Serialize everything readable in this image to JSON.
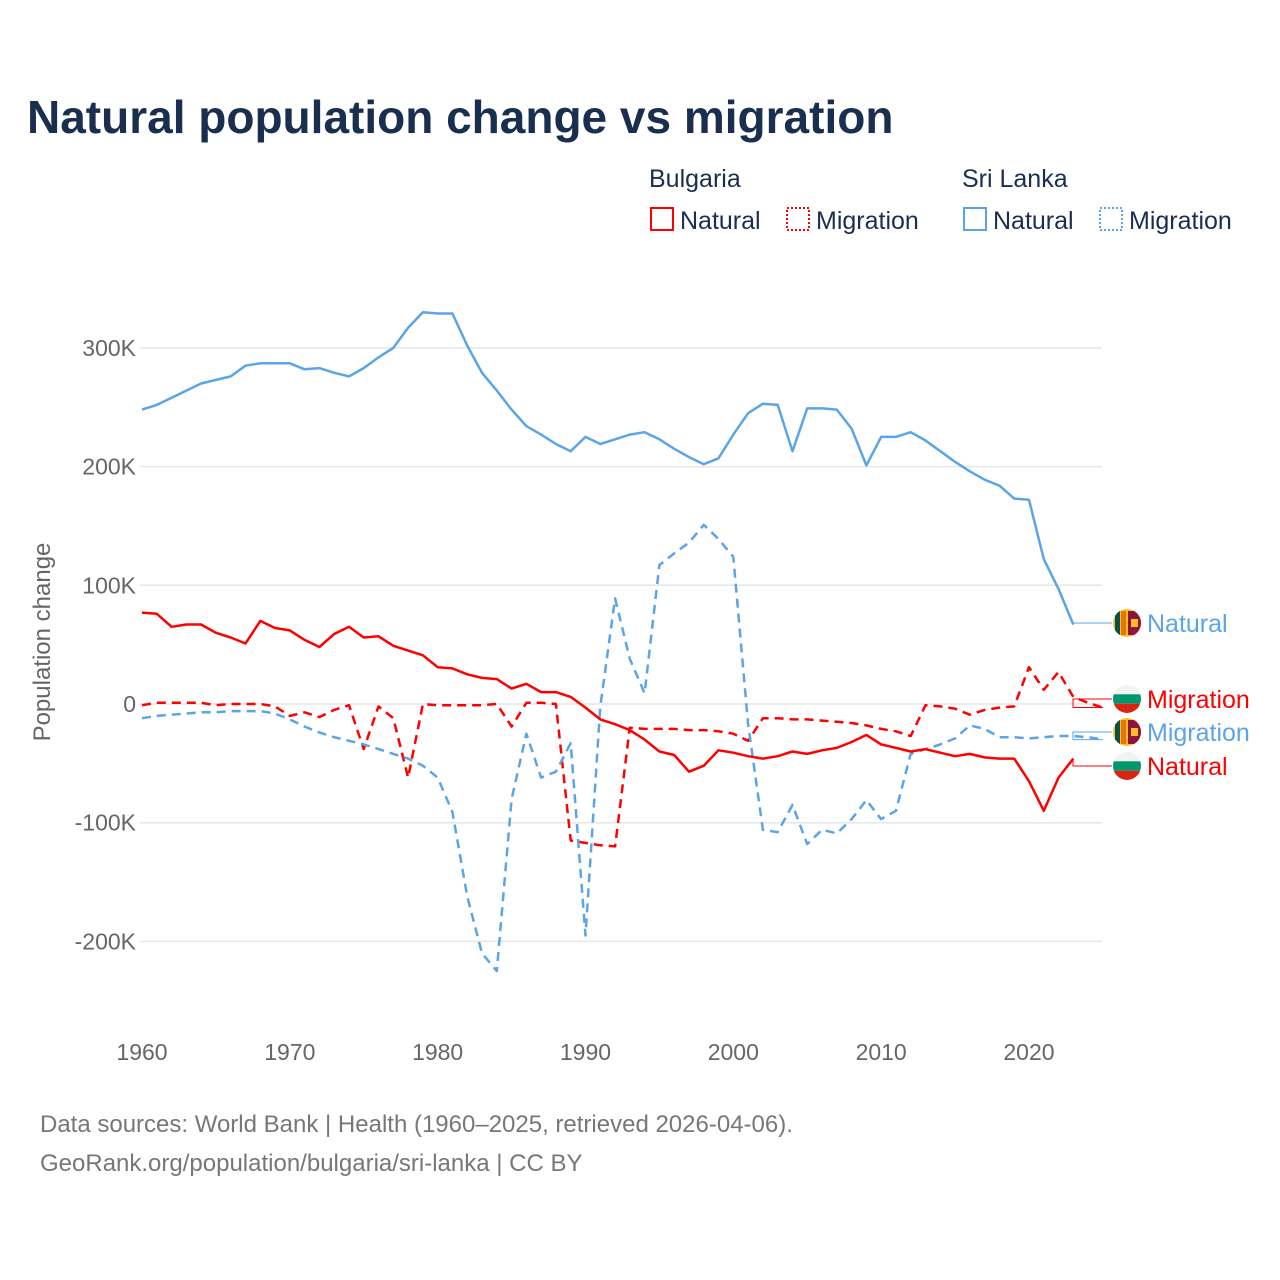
{
  "colors": {
    "bulgaria": "#ff0000",
    "sri_lanka": "#5ba4e8",
    "title": "#1a2e4f",
    "grid": "#e6e6e6"
  },
  "chart_data": {
    "type": "line",
    "title": "Natural population change vs migration",
    "xlabel": "",
    "ylabel": "Population change",
    "xlim": [
      1960,
      2025
    ],
    "ylim": [
      -250000,
      350000
    ],
    "grid": true,
    "x_ticks": [
      1960,
      1970,
      1980,
      1990,
      2000,
      2010,
      2020
    ],
    "x_tick_labels": [
      "1960",
      "1970",
      "1980",
      "1990",
      "2000",
      "2010",
      "2020"
    ],
    "y_ticks": [
      300000,
      200000,
      100000,
      0,
      -100000,
      -200000
    ],
    "y_tick_labels": [
      "300K",
      "200K",
      "100K",
      "0",
      "-100K",
      "-200K"
    ],
    "legend": {
      "placement": "top-right",
      "groups": [
        {
          "title": "Bulgaria",
          "items": [
            "Natural",
            "Migration"
          ]
        },
        {
          "title": "Sri Lanka",
          "items": [
            "Natural",
            "Migration"
          ]
        }
      ]
    },
    "series": [
      {
        "name": "Sri Lanka Natural",
        "country": "sri_lanka",
        "kind": "Natural",
        "dashed": false,
        "start_year": 1960,
        "end_label": "Natural",
        "values": [
          248000,
          252000,
          258000,
          264000,
          270000,
          273000,
          276000,
          285000,
          287000,
          287000,
          287000,
          282000,
          283000,
          279000,
          276000,
          283000,
          292000,
          300000,
          317000,
          330000,
          329000,
          329000,
          302000,
          279000,
          264000,
          248000,
          234000,
          227000,
          219000,
          213000,
          225000,
          219000,
          223000,
          227000,
          229000,
          223000,
          215000,
          208000,
          202000,
          207000,
          227000,
          245000,
          253000,
          252000,
          213000,
          249000,
          249000,
          248000,
          232000,
          201000,
          225000,
          225000,
          229000,
          222000,
          213000,
          204000,
          196000,
          189000,
          184000,
          173000,
          172000,
          122000,
          97000,
          67000
        ]
      },
      {
        "name": "Bulgaria Migration",
        "country": "bulgaria",
        "kind": "Migration",
        "dashed": true,
        "start_year": 1960,
        "end_label": "Migration",
        "values": [
          -1000,
          1000,
          1000,
          1000,
          1000,
          -1000,
          0,
          0,
          0,
          -2000,
          -10000,
          -7000,
          -11000,
          -5000,
          -1000,
          -38000,
          -2000,
          -12000,
          -62000,
          0,
          -1000,
          -1000,
          -1000,
          -1000,
          0,
          -19000,
          1000,
          1000,
          0,
          -115000,
          -117000,
          -119000,
          -120000,
          -20000,
          -21000,
          -21000,
          -21000,
          -22000,
          -22000,
          -23000,
          -25000,
          -31000,
          -12000,
          -12000,
          -13000,
          -13000,
          -14000,
          -15000,
          -16000,
          -18000,
          -21000,
          -23000,
          -27000,
          -1000,
          -2000,
          -4000,
          -9000,
          -5000,
          -3000,
          -2000,
          31000,
          12000,
          27000,
          6000,
          1000,
          -3000
        ]
      },
      {
        "name": "Sri Lanka Migration",
        "country": "sri_lanka",
        "kind": "Migration",
        "dashed": true,
        "start_year": 1960,
        "end_label": "Migration",
        "values": [
          -12000,
          -10000,
          -9000,
          -8000,
          -7000,
          -7000,
          -6000,
          -6000,
          -6000,
          -8000,
          -13000,
          -19000,
          -24000,
          -28000,
          -31000,
          -34000,
          -38000,
          -42000,
          -46000,
          -52000,
          -62000,
          -91000,
          -162000,
          -210000,
          -225000,
          -80000,
          -25000,
          -62000,
          -57000,
          -33000,
          -195000,
          -2000,
          89000,
          38000,
          9000,
          117000,
          127000,
          136000,
          151000,
          139000,
          124000,
          -17000,
          -106000,
          -108000,
          -85000,
          -118000,
          -106000,
          -109000,
          -97000,
          -81000,
          -97000,
          -90000,
          -42000,
          -38000,
          -34000,
          -29000,
          -18000,
          -21000,
          -28000,
          -28000,
          -29000,
          -28000,
          -27000,
          -27000,
          -28000,
          -30000
        ]
      },
      {
        "name": "Bulgaria Natural",
        "country": "bulgaria",
        "kind": "Natural",
        "dashed": false,
        "start_year": 1960,
        "end_label": "Natural",
        "values": [
          77000,
          76000,
          65000,
          67000,
          67000,
          60000,
          56000,
          51000,
          70000,
          64000,
          62000,
          54000,
          48000,
          59000,
          65000,
          56000,
          57000,
          49000,
          45000,
          41000,
          31000,
          30000,
          25000,
          22000,
          21000,
          13000,
          17000,
          10000,
          10000,
          6000,
          -3000,
          -13000,
          -17000,
          -22000,
          -30000,
          -40000,
          -43000,
          -57000,
          -52000,
          -39000,
          -41000,
          -44000,
          -46000,
          -44000,
          -40000,
          -42000,
          -39000,
          -37000,
          -32000,
          -26000,
          -34000,
          -37000,
          -40000,
          -38000,
          -41000,
          -44000,
          -42000,
          -45000,
          -46000,
          -46000,
          -65000,
          -90000,
          -62000,
          -46000
        ]
      }
    ]
  },
  "source": {
    "line1": "Data sources: World Bank | Health (1960–2025, retrieved 2026-04-06).",
    "line2": "GeoRank.org/population/bulgaria/sri-lanka | CC BY"
  }
}
